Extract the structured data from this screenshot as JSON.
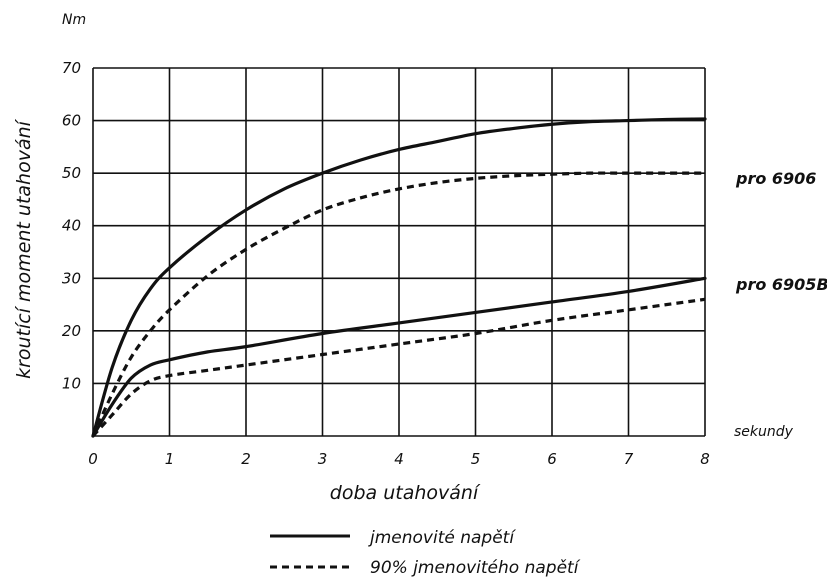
{
  "chart_data": {
    "type": "line",
    "y_unit": "Nm",
    "x_unit": "sekundy",
    "xlabel": "doba utahování",
    "ylabel": "kroutící moment utahování",
    "xlim": [
      0,
      8
    ],
    "ylim": [
      0,
      70
    ],
    "x_ticks": [
      "0",
      "1",
      "2",
      "3",
      "4",
      "5",
      "6",
      "7",
      "8"
    ],
    "y_ticks": [
      "10",
      "20",
      "30",
      "40",
      "50",
      "60",
      "70"
    ],
    "grid": true,
    "legend_position": "bottom-center",
    "legend": [
      {
        "label": "jmenovité napětí",
        "style": "solid"
      },
      {
        "label": "90% jmenovitého napětí",
        "style": "dashed"
      }
    ],
    "groups": [
      {
        "label": "pro 6906",
        "label_y": 50
      },
      {
        "label": "pro 6905B",
        "label_y": 30
      }
    ],
    "series": [
      {
        "group": "pro 6906",
        "style": "solid",
        "x": [
          0,
          0.25,
          0.5,
          0.75,
          1,
          1.5,
          2,
          2.5,
          3,
          3.5,
          4,
          4.5,
          5,
          5.5,
          6,
          6.5,
          7,
          7.5,
          8
        ],
        "y": [
          0,
          13,
          22,
          28,
          32,
          38,
          43,
          47,
          50,
          52.5,
          54.5,
          56,
          57.5,
          58.5,
          59.3,
          59.8,
          60,
          60.2,
          60.3
        ]
      },
      {
        "group": "pro 6906",
        "style": "dashed",
        "x": [
          0,
          0.25,
          0.5,
          0.75,
          1,
          1.5,
          2,
          2.5,
          3,
          3.5,
          4,
          4.5,
          5,
          5.5,
          6,
          6.5,
          7,
          7.5,
          8
        ],
        "y": [
          0,
          8,
          15,
          20,
          24,
          30.5,
          35.5,
          39.5,
          43,
          45.3,
          47,
          48.2,
          49,
          49.5,
          49.8,
          50,
          50,
          50,
          50
        ]
      },
      {
        "group": "pro 6905B",
        "style": "solid",
        "x": [
          0,
          0.25,
          0.5,
          0.75,
          1,
          1.5,
          2,
          3,
          4,
          5,
          6,
          7,
          8
        ],
        "y": [
          0,
          6,
          11,
          13.5,
          14.5,
          16,
          17,
          19.5,
          21.5,
          23.5,
          25.5,
          27.5,
          30
        ]
      },
      {
        "group": "pro 6905B",
        "style": "dashed",
        "x": [
          0,
          0.25,
          0.5,
          0.75,
          1,
          1.5,
          2,
          3,
          4,
          5,
          6,
          7,
          8
        ],
        "y": [
          0,
          4,
          8,
          10.5,
          11.5,
          12.5,
          13.5,
          15.5,
          17.5,
          19.5,
          22,
          24,
          26
        ]
      }
    ]
  }
}
